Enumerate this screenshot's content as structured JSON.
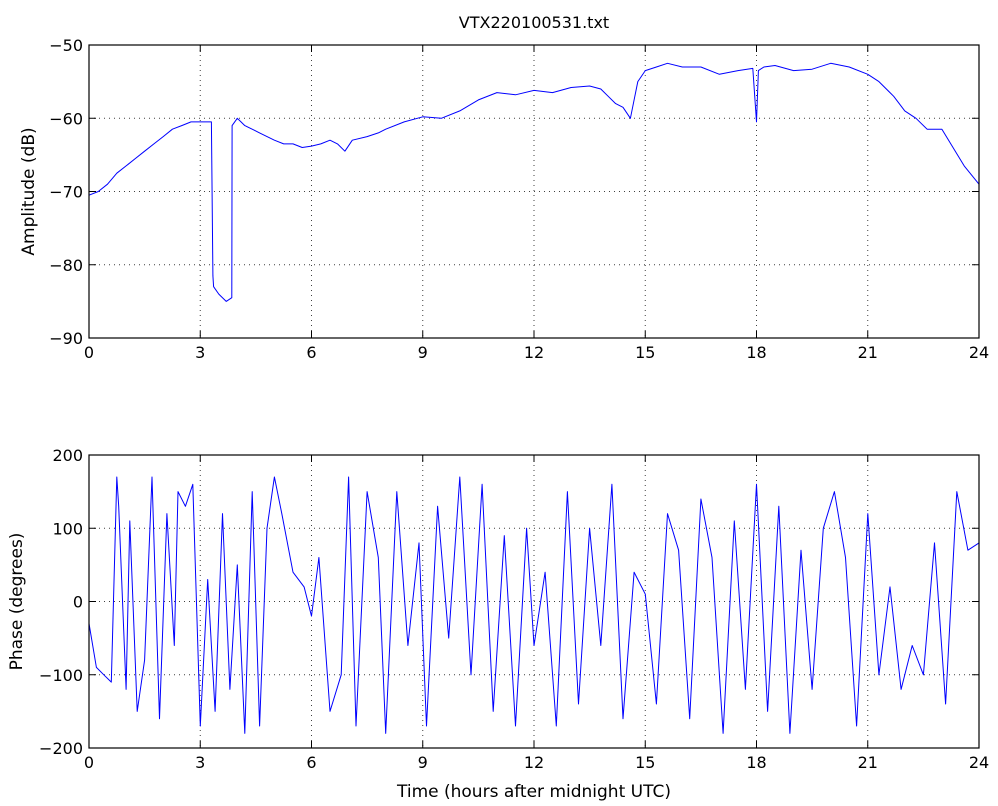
{
  "chart_data": [
    {
      "type": "line",
      "title": "VTX220100531.txt",
      "xlabel": "",
      "ylabel": "Amplitude (dB)",
      "xlim": [
        0,
        24
      ],
      "ylim": [
        -90,
        -50
      ],
      "xticks": [
        0,
        3,
        6,
        9,
        12,
        15,
        18,
        21,
        24
      ],
      "yticks": [
        -90,
        -80,
        -70,
        -60,
        -50
      ],
      "grid": true,
      "color": "#0000ff",
      "series": [
        {
          "x": [
            0,
            0.25,
            0.5,
            0.75,
            1.0,
            1.25,
            1.5,
            1.75,
            2.0,
            2.25,
            2.5,
            2.75,
            3.0,
            3.25,
            3.3,
            3.34,
            3.36,
            3.5,
            3.7,
            3.85,
            3.86,
            4.0,
            4.1,
            4.2,
            4.4,
            4.6,
            4.8,
            5.0,
            5.25,
            5.5,
            5.75,
            6.0,
            6.25,
            6.5,
            6.7,
            6.9,
            7.1,
            7.5,
            7.8,
            8.0,
            8.5,
            9.0,
            9.5,
            10.0,
            10.5,
            11.0,
            11.5,
            12.0,
            12.5,
            13.0,
            13.5,
            13.8,
            14.0,
            14.2,
            14.4,
            14.6,
            14.8,
            15.0,
            15.3,
            15.6,
            16.0,
            16.5,
            17.0,
            17.5,
            17.9,
            18.0,
            18.05,
            18.2,
            18.5,
            19.0,
            19.5,
            20.0,
            20.5,
            21.0,
            21.3,
            21.7,
            22.0,
            22.3,
            22.6,
            23.0,
            23.3,
            23.6,
            24.0
          ],
          "y": [
            -70.5,
            -70,
            -69,
            -67.5,
            -66.5,
            -65.5,
            -64.5,
            -63.5,
            -62.5,
            -61.5,
            -61,
            -60.5,
            -60.5,
            -60.5,
            -60.5,
            -81.5,
            -83,
            -84,
            -85,
            -84.5,
            -61,
            -60,
            -60.5,
            -61,
            -61.5,
            -62,
            -62.5,
            -63,
            -63.5,
            -63.5,
            -64,
            -63.8,
            -63.5,
            -63,
            -63.5,
            -64.5,
            -63,
            -62.5,
            -62,
            -61.5,
            -60.5,
            -59.8,
            -60,
            -59,
            -57.5,
            -56.5,
            -56.8,
            -56.2,
            -56.5,
            -55.8,
            -55.6,
            -56,
            -57,
            -58,
            -58.5,
            -60,
            -55,
            -53.5,
            -53,
            -52.5,
            -53,
            -53,
            -54,
            -53.5,
            -53.2,
            -60.5,
            -53.5,
            -53,
            -52.8,
            -53.5,
            -53.3,
            -52.5,
            -53,
            -54,
            -55,
            -57,
            -59,
            -60,
            -61.5,
            -61.5,
            -64,
            -66.5,
            -69
          ]
        }
      ]
    },
    {
      "type": "line",
      "title": "",
      "xlabel": "Time (hours after midnight UTC)",
      "ylabel": "Phase (degrees)",
      "xlim": [
        0,
        24
      ],
      "ylim": [
        -200,
        200
      ],
      "xticks": [
        0,
        3,
        6,
        9,
        12,
        15,
        18,
        21,
        24
      ],
      "yticks": [
        -200,
        -100,
        0,
        100,
        200
      ],
      "grid": true,
      "color": "#0000ff",
      "series": [
        {
          "x": [
            0,
            0.2,
            0.4,
            0.6,
            0.75,
            0.8,
            1.0,
            1.1,
            1.3,
            1.5,
            1.7,
            1.9,
            2.1,
            2.3,
            2.4,
            2.6,
            2.8,
            3.0,
            3.2,
            3.4,
            3.6,
            3.8,
            4.0,
            4.2,
            4.4,
            4.6,
            4.8,
            5.0,
            5.2,
            5.5,
            5.8,
            6.0,
            6.2,
            6.5,
            6.8,
            7.0,
            7.2,
            7.5,
            7.8,
            8.0,
            8.3,
            8.6,
            8.9,
            9.1,
            9.4,
            9.7,
            10.0,
            10.3,
            10.6,
            10.9,
            11.2,
            11.5,
            11.8,
            12.0,
            12.3,
            12.6,
            12.9,
            13.2,
            13.5,
            13.8,
            14.1,
            14.4,
            14.7,
            15.0,
            15.3,
            15.6,
            15.9,
            16.2,
            16.5,
            16.8,
            17.1,
            17.4,
            17.7,
            18.0,
            18.3,
            18.6,
            18.9,
            19.2,
            19.5,
            19.8,
            20.1,
            20.4,
            20.7,
            21.0,
            21.3,
            21.6,
            21.9,
            22.2,
            22.5,
            22.8,
            23.1,
            23.4,
            23.7,
            24.0
          ],
          "y": [
            -30,
            -90,
            -100,
            -110,
            170,
            130,
            -120,
            110,
            -150,
            -80,
            170,
            -160,
            120,
            -60,
            150,
            130,
            160,
            -170,
            30,
            -150,
            120,
            -120,
            50,
            -180,
            150,
            -170,
            100,
            170,
            120,
            40,
            20,
            -20,
            60,
            -150,
            -100,
            170,
            -170,
            150,
            60,
            -180,
            150,
            -60,
            80,
            -170,
            130,
            -50,
            170,
            -100,
            160,
            -150,
            90,
            -170,
            100,
            -60,
            40,
            -170,
            150,
            -140,
            100,
            -60,
            160,
            -160,
            40,
            10,
            -140,
            120,
            70,
            -160,
            140,
            60,
            -180,
            110,
            -120,
            160,
            -150,
            130,
            -180,
            70,
            -120,
            100,
            150,
            60,
            -170,
            120,
            -100,
            20,
            -120,
            -60,
            -100,
            80,
            -140,
            150,
            70,
            80
          ]
        }
      ]
    }
  ]
}
